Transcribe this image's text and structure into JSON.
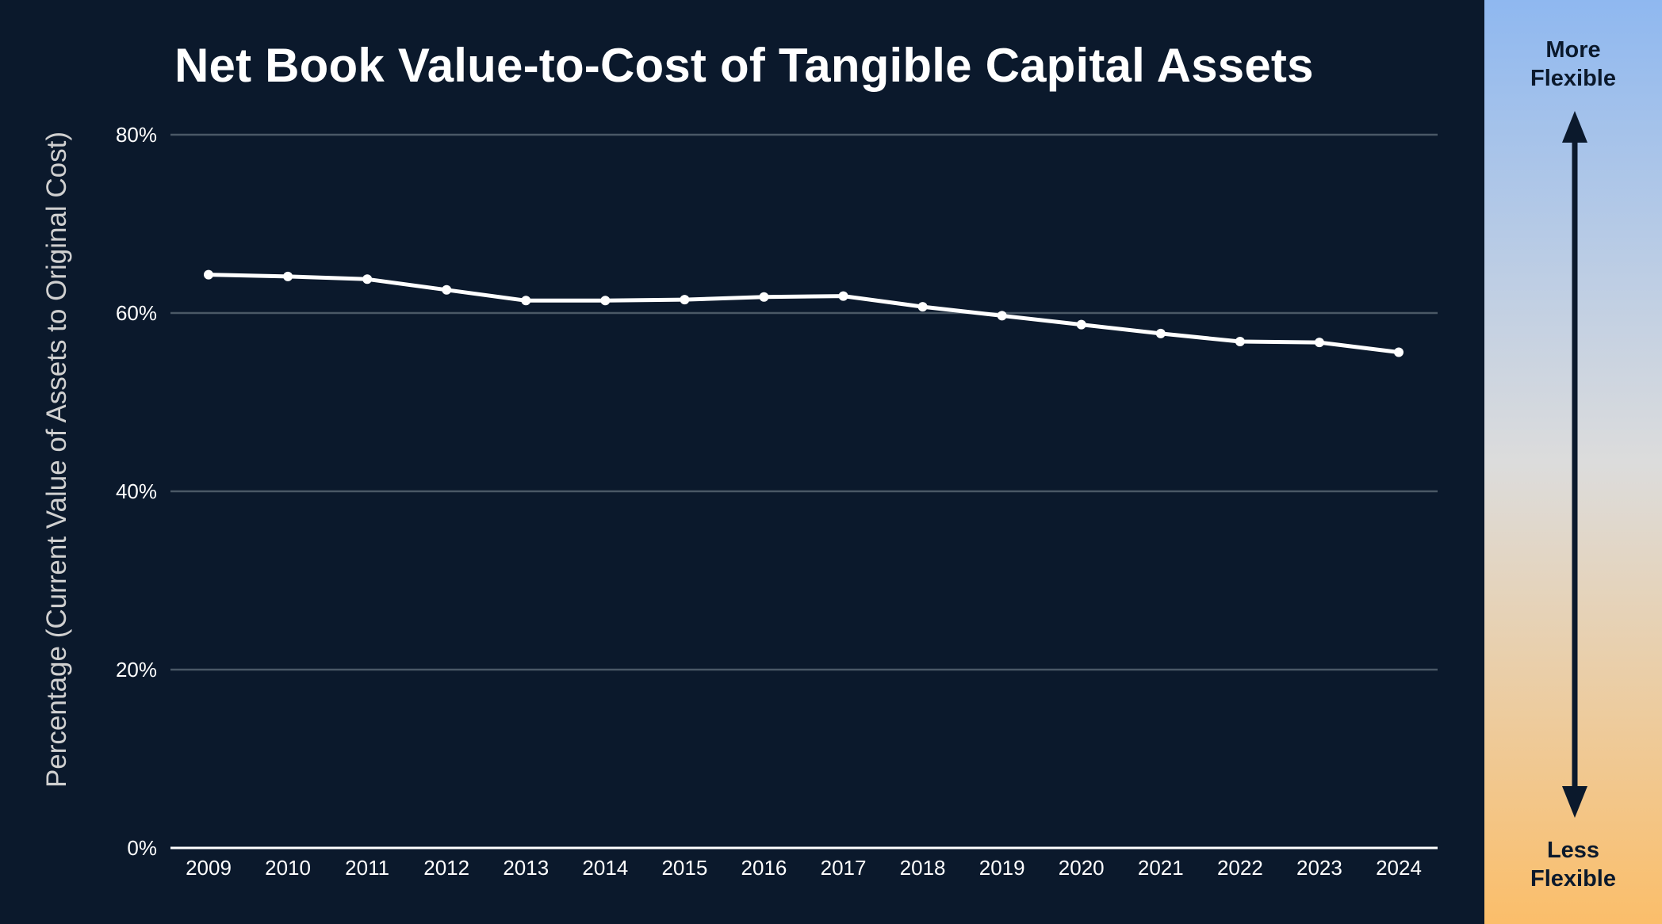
{
  "chart_data": {
    "type": "line",
    "title": "Net Book Value-to-Cost of Tangible Capital Assets",
    "ylabel": "Percentage (Current Value of Assets to Original Cost)",
    "xlabel": "",
    "categories": [
      "2009",
      "2010",
      "2011",
      "2012",
      "2013",
      "2014",
      "2015",
      "2016",
      "2017",
      "2018",
      "2019",
      "2020",
      "2021",
      "2022",
      "2023",
      "2024"
    ],
    "values": [
      64.3,
      64.1,
      63.8,
      62.6,
      61.4,
      61.4,
      61.5,
      61.8,
      61.9,
      60.7,
      59.7,
      58.7,
      57.7,
      56.8,
      56.7,
      55.6
    ],
    "ylim": [
      0,
      80
    ],
    "yticks": [
      0,
      20,
      40,
      60,
      80
    ],
    "ytick_labels": [
      "0%",
      "20%",
      "40%",
      "60%",
      "80%"
    ],
    "grid": true,
    "colors": {
      "background": "#0b192c",
      "line": "#ffffff",
      "grid": "#4a5866"
    }
  },
  "side_panel": {
    "top_label": [
      "More",
      "Flexible"
    ],
    "bottom_label": [
      "Less",
      "Flexible"
    ]
  }
}
